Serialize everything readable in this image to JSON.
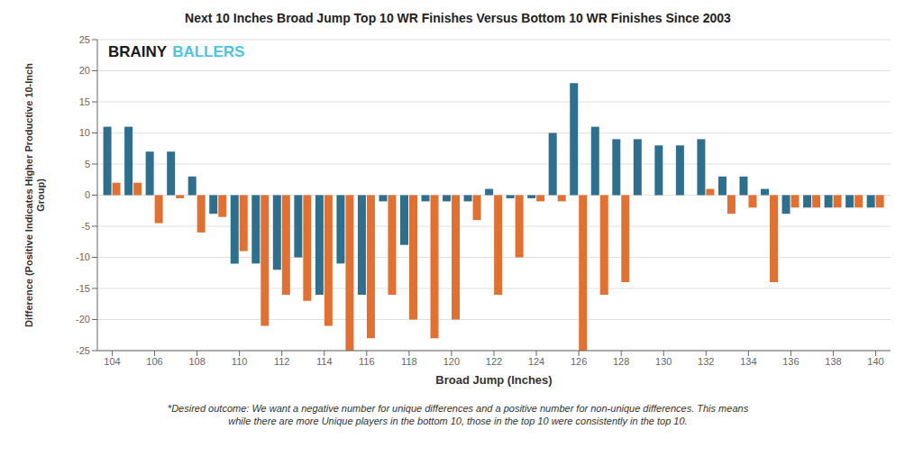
{
  "chart_data": {
    "type": "bar",
    "title": "Next 10 Inches Broad Jump Top 10 WR Finishes Versus Bottom 10 WR Finishes Since 2003",
    "x_label": "Broad Jump (Inches)",
    "y_label": "Difference (Positive Indicates Higher Productive 10-Inch\nGroup)",
    "footnote": "*Desired outcome: We want a negative number for unique differences and a positive number for non-unique differences. This means\nwhile there are more Unique players in the bottom 10, those in the top 10 were consistently in the top 10.",
    "annotations": [
      {
        "text": "BRAINY",
        "color": "#1a1a1a"
      },
      {
        "text": "BALLERS",
        "color": "#4ec4e0"
      }
    ],
    "x": [
      104,
      105,
      106,
      107,
      108,
      109,
      110,
      111,
      112,
      113,
      114,
      115,
      116,
      117,
      118,
      119,
      120,
      121,
      122,
      123,
      124,
      125,
      126,
      127,
      128,
      129,
      130,
      131,
      132,
      133,
      134,
      135,
      136,
      137,
      138,
      139,
      140
    ],
    "series": [
      {
        "color": "#2e6f8e",
        "values": [
          11,
          11,
          7,
          7,
          3,
          -3,
          -11,
          -11,
          -12,
          -10,
          -16,
          -11,
          -16,
          -1,
          -8,
          -1,
          -1,
          -1,
          1,
          -0.5,
          -0.5,
          10,
          18,
          11,
          9,
          9,
          8,
          8,
          9,
          3,
          3,
          1,
          -3,
          -2,
          -2,
          -2,
          -2
        ]
      },
      {
        "color": "#e07132",
        "values": [
          2,
          2,
          -4.5,
          -0.5,
          -6,
          -3.5,
          -9,
          -21,
          -16,
          -17,
          -21,
          -25,
          -23,
          -16,
          -20,
          -23,
          -20,
          -4,
          -16,
          -10,
          -1,
          -1,
          -25,
          -16,
          -14,
          0,
          0,
          0,
          1,
          -3,
          -2,
          -14,
          -2,
          -2,
          -2,
          -2,
          -2
        ]
      }
    ],
    "xlim": [
      103.3,
      140.7
    ],
    "xticks": [
      104,
      106,
      108,
      110,
      112,
      114,
      116,
      118,
      120,
      122,
      124,
      126,
      128,
      130,
      132,
      134,
      136,
      138,
      140
    ],
    "ylim": [
      -25,
      25
    ],
    "yticks": [
      -25,
      -20,
      -15,
      -10,
      -5,
      0,
      5,
      10,
      15,
      20,
      25
    ],
    "grid": true
  }
}
